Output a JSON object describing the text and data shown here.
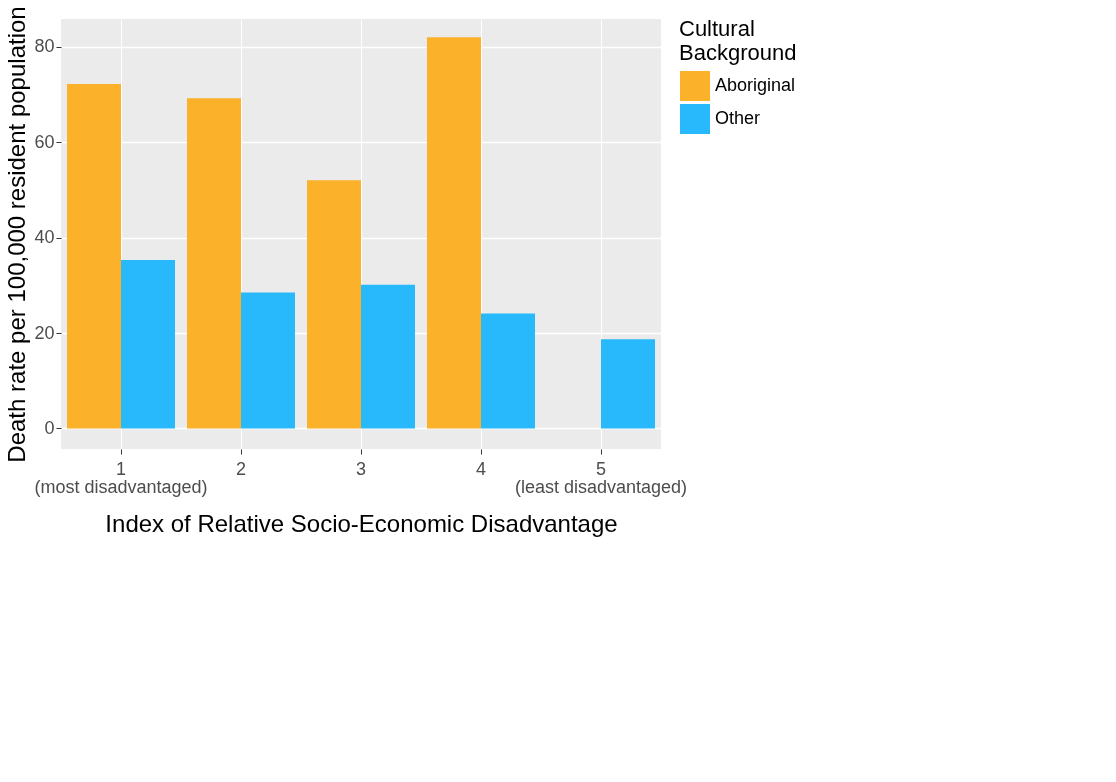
{
  "chart_data": {
    "type": "bar",
    "xlabel": "Index of Relative Socio-Economic Disadvantage",
    "ylabel": "Death rate per 100,000 resident population",
    "legend_title": "Cultural Background",
    "categories": [
      "1",
      "2",
      "3",
      "4",
      "5"
    ],
    "series": [
      {
        "name": "Aboriginal",
        "color": "#fbb12a",
        "values": [
          72.2,
          69.2,
          52.0,
          82.0,
          null
        ]
      },
      {
        "name": "Other",
        "color": "#27b9fb",
        "values": [
          35.3,
          28.5,
          30.1,
          24.1,
          18.7
        ]
      }
    ],
    "ylim": [
      -4.3,
      85.8
    ],
    "yticks": [
      0,
      20,
      40,
      60,
      80
    ],
    "grid": true,
    "legend": "right",
    "annotations": [
      "(most disadvantaged)",
      "(least disadvantaged)"
    ]
  }
}
